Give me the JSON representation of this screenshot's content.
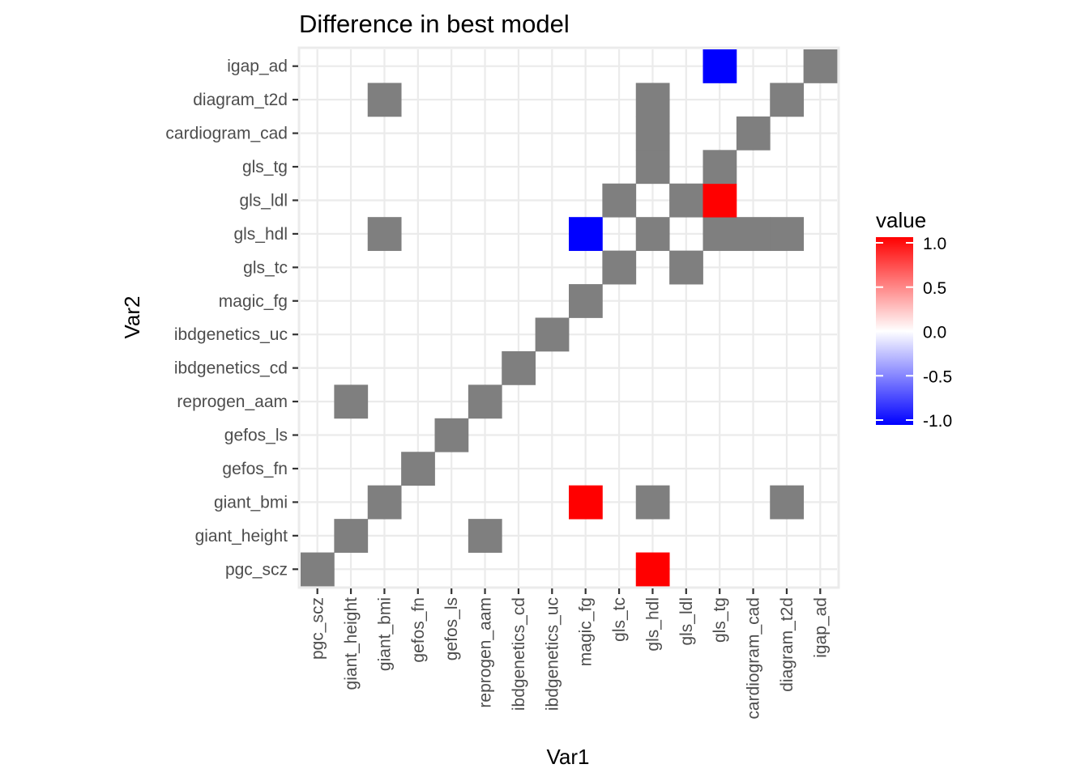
{
  "chart_data": {
    "type": "heatmap",
    "title": "Difference in best model",
    "xlabel": "Var1",
    "ylabel": "Var2",
    "x_categories": [
      "pgc_scz",
      "giant_height",
      "giant_bmi",
      "gefos_fn",
      "gefos_ls",
      "reprogen_aam",
      "ibdgenetics_cd",
      "ibdgenetics_uc",
      "magic_fg",
      "gls_tc",
      "gls_hdl",
      "gls_ldl",
      "gls_tg",
      "cardiogram_cad",
      "diagram_t2d",
      "igap_ad"
    ],
    "y_categories": [
      "pgc_scz",
      "giant_height",
      "giant_bmi",
      "gefos_fn",
      "gefos_ls",
      "reprogen_aam",
      "ibdgenetics_cd",
      "ibdgenetics_uc",
      "magic_fg",
      "gls_tc",
      "gls_hdl",
      "gls_ldl",
      "gls_tg",
      "cardiogram_cad",
      "diagram_t2d",
      "igap_ad"
    ],
    "cells": [
      {
        "x": "pgc_scz",
        "y": "pgc_scz",
        "value": null
      },
      {
        "x": "gls_hdl",
        "y": "pgc_scz",
        "value": 1
      },
      {
        "x": "giant_height",
        "y": "giant_height",
        "value": null
      },
      {
        "x": "reprogen_aam",
        "y": "giant_height",
        "value": null
      },
      {
        "x": "giant_bmi",
        "y": "giant_bmi",
        "value": null
      },
      {
        "x": "magic_fg",
        "y": "giant_bmi",
        "value": 1
      },
      {
        "x": "gls_hdl",
        "y": "giant_bmi",
        "value": null
      },
      {
        "x": "diagram_t2d",
        "y": "giant_bmi",
        "value": null
      },
      {
        "x": "gefos_fn",
        "y": "gefos_fn",
        "value": null
      },
      {
        "x": "gefos_ls",
        "y": "gefos_ls",
        "value": null
      },
      {
        "x": "giant_height",
        "y": "reprogen_aam",
        "value": null
      },
      {
        "x": "reprogen_aam",
        "y": "reprogen_aam",
        "value": null
      },
      {
        "x": "ibdgenetics_cd",
        "y": "ibdgenetics_cd",
        "value": null
      },
      {
        "x": "ibdgenetics_uc",
        "y": "ibdgenetics_uc",
        "value": null
      },
      {
        "x": "magic_fg",
        "y": "magic_fg",
        "value": null
      },
      {
        "x": "gls_tc",
        "y": "gls_tc",
        "value": null
      },
      {
        "x": "gls_ldl",
        "y": "gls_tc",
        "value": null
      },
      {
        "x": "giant_bmi",
        "y": "gls_hdl",
        "value": null
      },
      {
        "x": "magic_fg",
        "y": "gls_hdl",
        "value": -1
      },
      {
        "x": "gls_hdl",
        "y": "gls_hdl",
        "value": null
      },
      {
        "x": "gls_tg",
        "y": "gls_hdl",
        "value": null
      },
      {
        "x": "cardiogram_cad",
        "y": "gls_hdl",
        "value": null
      },
      {
        "x": "diagram_t2d",
        "y": "gls_hdl",
        "value": null
      },
      {
        "x": "gls_tc",
        "y": "gls_ldl",
        "value": null
      },
      {
        "x": "gls_ldl",
        "y": "gls_ldl",
        "value": null
      },
      {
        "x": "gls_tg",
        "y": "gls_ldl",
        "value": 1
      },
      {
        "x": "gls_hdl",
        "y": "gls_tg",
        "value": null
      },
      {
        "x": "gls_tg",
        "y": "gls_tg",
        "value": null
      },
      {
        "x": "gls_hdl",
        "y": "cardiogram_cad",
        "value": null
      },
      {
        "x": "cardiogram_cad",
        "y": "cardiogram_cad",
        "value": null
      },
      {
        "x": "giant_bmi",
        "y": "diagram_t2d",
        "value": null
      },
      {
        "x": "gls_hdl",
        "y": "diagram_t2d",
        "value": null
      },
      {
        "x": "diagram_t2d",
        "y": "diagram_t2d",
        "value": null
      },
      {
        "x": "gls_tg",
        "y": "igap_ad",
        "value": -1
      },
      {
        "x": "igap_ad",
        "y": "igap_ad",
        "value": null
      }
    ],
    "na_color": "#7f7f7f",
    "legend": {
      "title": "value",
      "position": "right",
      "range": [
        -1,
        1
      ],
      "ticks": [
        1,
        0.5,
        0,
        -0.5,
        -1
      ],
      "tick_labels": [
        "1.0",
        "0.5",
        "0.0",
        "-0.5",
        "-1.0"
      ],
      "low_color": "#0000ff",
      "mid_color": "#ffffff",
      "high_color": "#ff0000"
    },
    "grid": true,
    "panel_background": "#ffffff",
    "grid_color": "#ebebeb"
  }
}
